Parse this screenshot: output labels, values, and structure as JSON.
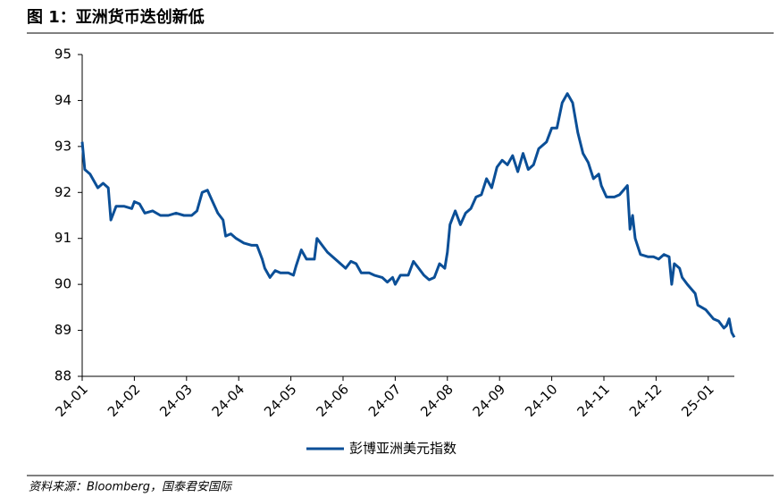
{
  "chart_data": {
    "type": "line",
    "title": "图 1：亚洲货币迭创新低",
    "source": "资料来源：Bloomberg，国泰君安国际",
    "x": [
      0,
      0.05,
      0.15,
      0.3,
      0.4,
      0.5,
      0.55,
      0.65,
      0.8,
      0.95,
      1.0,
      1.1,
      1.2,
      1.35,
      1.5,
      1.65,
      1.8,
      1.95,
      2.1,
      2.2,
      2.3,
      2.4,
      2.5,
      2.6,
      2.7,
      2.75,
      2.85,
      2.95,
      3.1,
      3.25,
      3.35,
      3.45,
      3.5,
      3.6,
      3.7,
      3.8,
      3.95,
      4.05,
      4.1,
      4.2,
      4.3,
      4.45,
      4.5,
      4.6,
      4.7,
      4.8,
      4.95,
      5.05,
      5.15,
      5.25,
      5.35,
      5.5,
      5.6,
      5.75,
      5.85,
      5.95,
      6.0,
      6.1,
      6.25,
      6.35,
      6.45,
      6.55,
      6.65,
      6.75,
      6.85,
      6.95,
      7.0,
      7.05,
      7.15,
      7.25,
      7.35,
      7.45,
      7.55,
      7.65,
      7.75,
      7.85,
      7.95,
      8.05,
      8.15,
      8.25,
      8.35,
      8.45,
      8.55,
      8.65,
      8.75,
      8.9,
      9.0,
      9.1,
      9.2,
      9.3,
      9.4,
      9.5,
      9.6,
      9.7,
      9.8,
      9.9,
      9.95,
      10.05,
      10.2,
      10.3,
      10.45,
      10.5,
      10.55,
      10.6,
      10.7,
      10.85,
      10.95,
      11.05,
      11.15,
      11.25,
      11.3,
      11.35,
      11.45,
      11.5,
      11.6,
      11.75,
      11.8,
      11.95,
      12.1,
      12.2,
      12.3,
      12.35,
      12.4,
      12.45,
      12.5
    ],
    "series": [
      {
        "name": "彭博亚洲美元指数",
        "color": "#0b4f97",
        "values": [
          93.1,
          92.5,
          92.4,
          92.1,
          92.2,
          92.1,
          91.4,
          91.7,
          91.7,
          91.65,
          91.8,
          91.75,
          91.55,
          91.6,
          91.5,
          91.5,
          91.55,
          91.5,
          91.5,
          91.6,
          92.0,
          92.05,
          91.8,
          91.55,
          91.4,
          91.05,
          91.1,
          91.0,
          90.9,
          90.85,
          90.85,
          90.55,
          90.35,
          90.15,
          90.3,
          90.25,
          90.25,
          90.2,
          90.4,
          90.75,
          90.55,
          90.55,
          91.0,
          90.85,
          90.7,
          90.6,
          90.45,
          90.35,
          90.5,
          90.45,
          90.25,
          90.25,
          90.2,
          90.15,
          90.05,
          90.15,
          90.0,
          90.2,
          90.2,
          90.5,
          90.35,
          90.2,
          90.1,
          90.15,
          90.45,
          90.35,
          90.7,
          91.3,
          91.6,
          91.3,
          91.55,
          91.65,
          91.9,
          91.95,
          92.3,
          92.1,
          92.55,
          92.7,
          92.6,
          92.8,
          92.45,
          92.85,
          92.5,
          92.6,
          92.95,
          93.1,
          93.4,
          93.4,
          93.95,
          94.15,
          93.95,
          93.3,
          92.85,
          92.65,
          92.3,
          92.4,
          92.15,
          91.9,
          91.9,
          91.95,
          92.15,
          91.2,
          91.5,
          91.0,
          90.65,
          90.6,
          90.6,
          90.55,
          90.65,
          90.6,
          90.0,
          90.45,
          90.35,
          90.15,
          90.0,
          89.8,
          89.55,
          89.45,
          89.25,
          89.2,
          89.05,
          89.1,
          89.25,
          88.95,
          88.85
        ]
      }
    ],
    "xlim": [
      0,
      12.5
    ],
    "xticks": [
      {
        "value": 0,
        "label": "24-01"
      },
      {
        "value": 1,
        "label": "24-02"
      },
      {
        "value": 2,
        "label": "24-03"
      },
      {
        "value": 3,
        "label": "24-04"
      },
      {
        "value": 4,
        "label": "24-05"
      },
      {
        "value": 5,
        "label": "24-06"
      },
      {
        "value": 6,
        "label": "24-07"
      },
      {
        "value": 7,
        "label": "24-08"
      },
      {
        "value": 8,
        "label": "24-09"
      },
      {
        "value": 9,
        "label": "24-10"
      },
      {
        "value": 10,
        "label": "24-11"
      },
      {
        "value": 11,
        "label": "24-12"
      },
      {
        "value": 12,
        "label": "25-01"
      }
    ],
    "ylim": [
      88,
      95
    ],
    "yticks": [
      88,
      89,
      90,
      91,
      92,
      93,
      94,
      95
    ],
    "legend": "bottom"
  }
}
